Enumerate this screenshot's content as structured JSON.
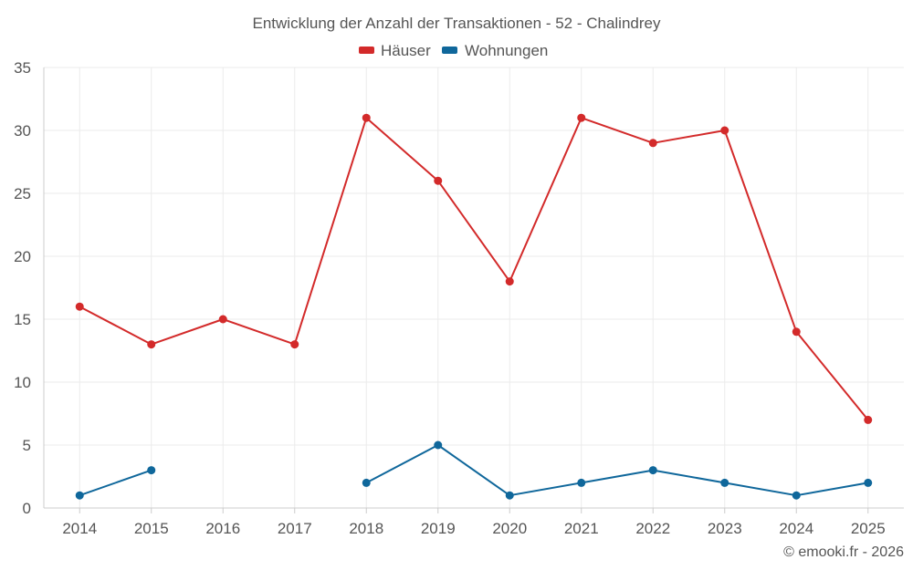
{
  "chart_data": {
    "type": "line",
    "title": "Entwicklung der Anzahl der Transaktionen - 52 - Chalindrey",
    "categories": [
      "2014",
      "2015",
      "2016",
      "2017",
      "2018",
      "2019",
      "2020",
      "2021",
      "2022",
      "2023",
      "2024",
      "2025"
    ],
    "series": [
      {
        "name": "Häuser",
        "color": "#d32a2a",
        "values": [
          16,
          13,
          15,
          13,
          31,
          26,
          18,
          31,
          29,
          30,
          14,
          7
        ]
      },
      {
        "name": "Wohnungen",
        "color": "#0f679b",
        "values": [
          1,
          3,
          null,
          null,
          2,
          5,
          1,
          2,
          3,
          2,
          1,
          2
        ]
      }
    ],
    "ylim": [
      0,
      35
    ],
    "yticks": [
      0,
      5,
      10,
      15,
      20,
      25,
      30,
      35
    ],
    "ytick_labels": [
      "0",
      "5",
      "10",
      "15",
      "20",
      "25",
      "30",
      "35"
    ],
    "grid": true,
    "legend_position": "top-center",
    "xlabel": "",
    "ylabel": ""
  },
  "credit": "© emooki.fr - 2026"
}
